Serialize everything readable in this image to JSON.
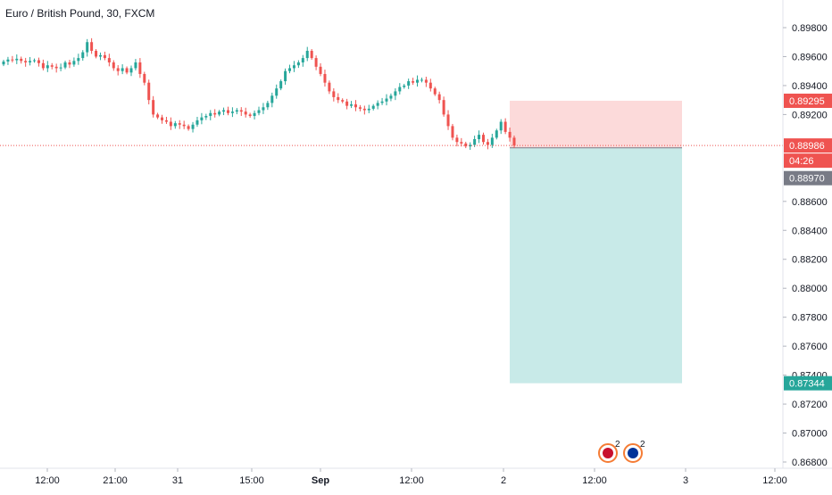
{
  "header": {
    "title": "Euro / British Pound, 30, FXCM"
  },
  "events": {
    "uk": {
      "count": "2"
    },
    "eu": {
      "count": "2"
    }
  },
  "colors": {
    "up": "#26a69a",
    "down": "#ef5350",
    "stop_zone": "#fcdada",
    "target_zone": "#c8eae8",
    "grid_text": "#131722",
    "axis_line": "#e0e3eb",
    "price_line": "#ef5350",
    "stop_label": "#ef5350",
    "target_label": "#26a69a",
    "current_label": "#ef5350",
    "countdown_label": "#ef5350",
    "entry_label": "#787b86"
  },
  "chart_data": {
    "type": "candlestick",
    "symbol": "Euro / British Pound",
    "interval": "30",
    "source": "FXCM",
    "y_axis": {
      "ylim": [
        0.868,
        0.899
      ],
      "ticks": [
        "0.89800",
        "0.89600",
        "0.89400",
        "0.89200",
        "0.88600",
        "0.88400",
        "0.88200",
        "0.88000",
        "0.87800",
        "0.87600",
        "0.87400",
        "0.87200",
        "0.87000",
        "0.86800"
      ]
    },
    "x_axis": {
      "ticks": [
        "12:00",
        "21:00",
        "31",
        "15:00",
        "Sep",
        "12:00",
        "2",
        "12:00",
        "3",
        "12:00"
      ]
    },
    "price_labels": {
      "stop": "0.89295",
      "current": "0.88986",
      "countdown": "04:26",
      "entry": "0.88970",
      "target": "0.87344"
    },
    "position": {
      "type": "short",
      "entry": 0.8897,
      "stop": 0.89295,
      "target": 0.87344
    },
    "current_price": 0.88986,
    "candles_close": [
      0.89566,
      0.8958,
      0.89575,
      0.89585,
      0.8957,
      0.8956,
      0.8957,
      0.89575,
      0.89555,
      0.8952,
      0.8954,
      0.8953,
      0.8952,
      0.89525,
      0.8956,
      0.89545,
      0.8957,
      0.8959,
      0.8963,
      0.897,
      0.8964,
      0.896,
      0.8961,
      0.8959,
      0.8956,
      0.8952,
      0.895,
      0.8952,
      0.8949,
      0.8952,
      0.8956,
      0.8948,
      0.8942,
      0.893,
      0.892,
      0.8918,
      0.8916,
      0.8915,
      0.8912,
      0.8914,
      0.8913,
      0.8912,
      0.891,
      0.8913,
      0.8916,
      0.8918,
      0.8919,
      0.8921,
      0.892,
      0.8922,
      0.8923,
      0.8921,
      0.8922,
      0.8923,
      0.8922,
      0.892,
      0.8919,
      0.8921,
      0.8923,
      0.8925,
      0.8928,
      0.8933,
      0.8938,
      0.8943,
      0.895,
      0.8952,
      0.8954,
      0.8956,
      0.8959,
      0.8964,
      0.8959,
      0.8953,
      0.8948,
      0.8942,
      0.8936,
      0.8932,
      0.893,
      0.8929,
      0.8926,
      0.8927,
      0.8925,
      0.8924,
      0.8923,
      0.8924,
      0.8926,
      0.8928,
      0.8929,
      0.8931,
      0.8933,
      0.8936,
      0.8939,
      0.894,
      0.8943,
      0.8942,
      0.8944,
      0.8944,
      0.8942,
      0.8938,
      0.8934,
      0.893,
      0.892,
      0.8912,
      0.8904,
      0.8901,
      0.89,
      0.8898,
      0.8899,
      0.8903,
      0.8906,
      0.8901,
      0.8899,
      0.8904,
      0.8909,
      0.8915,
      0.8908,
      0.8904,
      0.88986
    ]
  }
}
